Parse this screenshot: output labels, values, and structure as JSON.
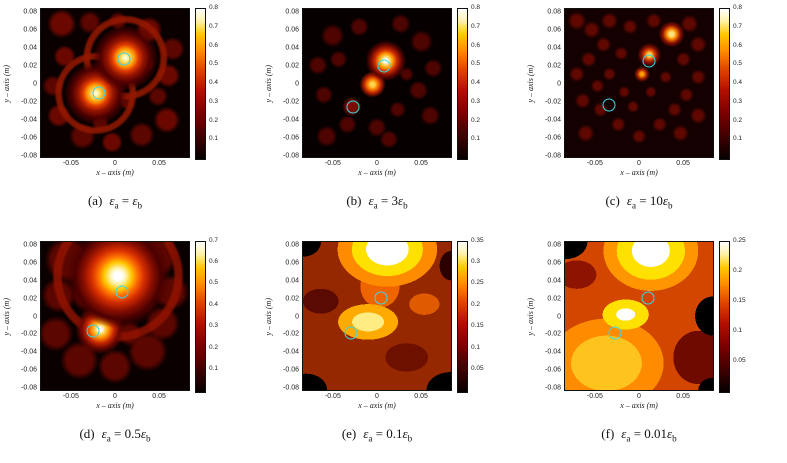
{
  "figure": {
    "background": "#ffffff"
  },
  "colors": {
    "target_circle": "#38d8e8",
    "colormap": "hot",
    "plot_background": "#000000"
  },
  "axes": {
    "x_label": "x – axis (m)",
    "y_label": "y – axis (m)",
    "x_ticks": [
      "-0.05",
      "0",
      "0.05"
    ],
    "y_ticks": [
      "0.08",
      "0.06",
      "0.04",
      "0.02",
      "0",
      "-0.02",
      "-0.04",
      "-0.06",
      "-0.08"
    ],
    "x_range": [
      -0.085,
      0.085
    ],
    "y_range": [
      -0.085,
      0.085
    ]
  },
  "chart_data": [
    {
      "id": "a",
      "type": "heatmap",
      "caption_text": "(a) ε_a = ε_b",
      "caption": {
        "prefix": "(a)",
        "lhs_base": "ε",
        "lhs_sub": "a",
        "equals": "=",
        "rhs_coeff": "",
        "rhs_base": "ε",
        "rhs_sub": "b"
      },
      "colorbar_range": [
        0,
        0.8
      ],
      "colorbar_ticks": [
        "0.8",
        "0.7",
        "0.6",
        "0.5",
        "0.4",
        "0.3",
        "0.2",
        "0.1"
      ],
      "targets": [
        [
          0.01,
          0.027
        ],
        [
          -0.018,
          -0.012
        ]
      ]
    },
    {
      "id": "b",
      "type": "heatmap",
      "caption_text": "(b) ε_a = 3ε_b",
      "caption": {
        "prefix": "(b)",
        "lhs_base": "ε",
        "lhs_sub": "a",
        "equals": "=",
        "rhs_coeff": "3",
        "rhs_base": "ε",
        "rhs_sub": "b"
      },
      "colorbar_range": [
        0,
        0.8
      ],
      "colorbar_ticks": [
        "0.8",
        "0.7",
        "0.6",
        "0.5",
        "0.4",
        "0.3",
        "0.2",
        "0.1"
      ],
      "targets": [
        [
          0.008,
          0.02
        ],
        [
          -0.028,
          -0.028
        ]
      ]
    },
    {
      "id": "c",
      "type": "heatmap",
      "caption_text": "(c) ε_a = 10ε_b",
      "caption": {
        "prefix": "(c)",
        "lhs_base": "ε",
        "lhs_sub": "a",
        "equals": "=",
        "rhs_coeff": "10",
        "rhs_base": "ε",
        "rhs_sub": "b"
      },
      "colorbar_range": [
        0,
        0.8
      ],
      "colorbar_ticks": [
        "0.8",
        "0.7",
        "0.6",
        "0.5",
        "0.4",
        "0.3",
        "0.2",
        "0.1"
      ],
      "targets": [
        [
          0.012,
          0.025
        ],
        [
          -0.035,
          -0.025
        ]
      ]
    },
    {
      "id": "d",
      "type": "heatmap",
      "caption_text": "(d) ε_a = 0.5ε_b",
      "caption": {
        "prefix": "(d)",
        "lhs_base": "ε",
        "lhs_sub": "a",
        "equals": "=",
        "rhs_coeff": "0.5",
        "rhs_base": "ε",
        "rhs_sub": "b"
      },
      "colorbar_range": [
        0,
        0.7
      ],
      "colorbar_ticks": [
        "0.7",
        "0.6",
        "0.5",
        "0.4",
        "0.3",
        "0.2",
        "0.1"
      ],
      "targets": [
        [
          0.008,
          0.027
        ],
        [
          -0.025,
          -0.018
        ]
      ]
    },
    {
      "id": "e",
      "type": "heatmap",
      "caption_text": "(e) ε_a = 0.1ε_b",
      "caption": {
        "prefix": "(e)",
        "lhs_base": "ε",
        "lhs_sub": "a",
        "equals": "=",
        "rhs_coeff": "0.1",
        "rhs_base": "ε",
        "rhs_sub": "b"
      },
      "colorbar_range": [
        0,
        0.35
      ],
      "colorbar_ticks": [
        "0.35",
        "0.3",
        "0.25",
        "0.2",
        "0.15",
        "0.1",
        "0.05"
      ],
      "targets": [
        [
          0.005,
          0.02
        ],
        [
          -0.03,
          -0.02
        ]
      ]
    },
    {
      "id": "f",
      "type": "heatmap",
      "caption_text": "(f) ε_a = 0.01ε_b",
      "caption": {
        "prefix": "(f)",
        "lhs_base": "ε",
        "lhs_sub": "a",
        "equals": "=",
        "rhs_coeff": "0.01",
        "rhs_base": "ε",
        "rhs_sub": "b"
      },
      "colorbar_range": [
        0,
        0.25
      ],
      "colorbar_ticks": [
        "0.25",
        "0.2",
        "0.15",
        "0.1",
        "0.05"
      ],
      "targets": [
        [
          0.01,
          0.02
        ],
        [
          -0.028,
          -0.02
        ]
      ]
    }
  ]
}
